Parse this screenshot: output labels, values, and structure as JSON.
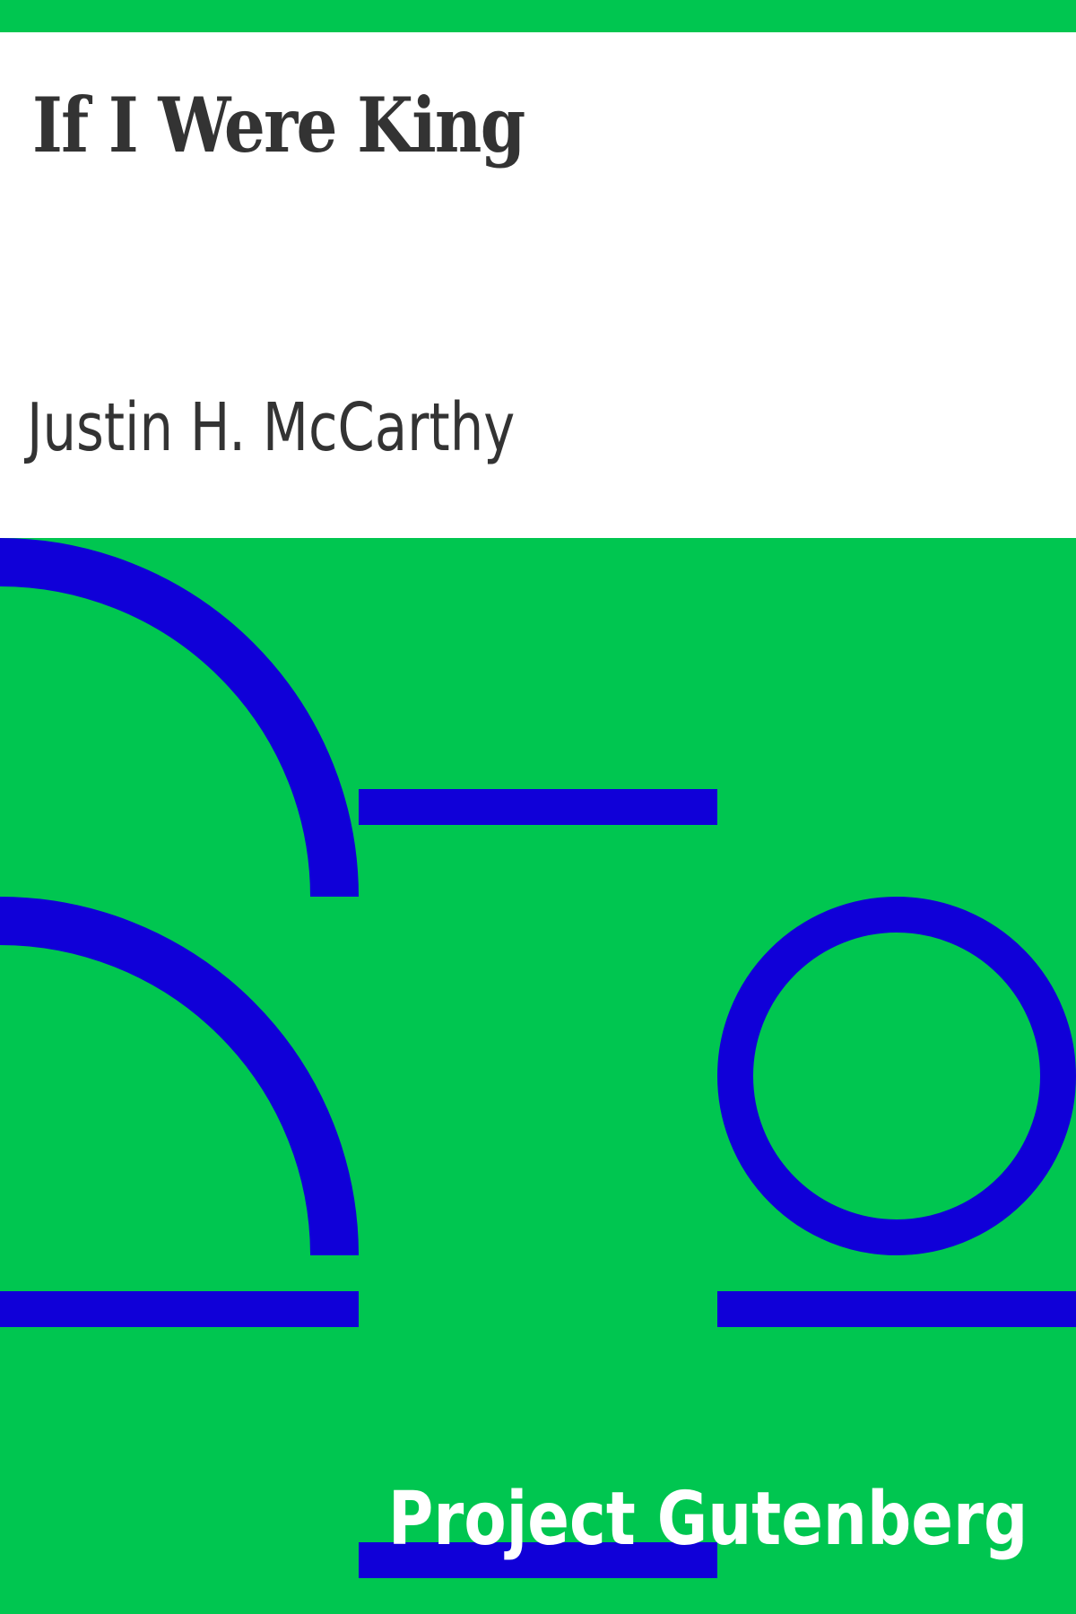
{
  "cover": {
    "title": "If I Were King",
    "author": "Justin H. McCarthy",
    "publisher": "Project Gutenberg"
  },
  "colors": {
    "background": "#00c650",
    "shapes": "#1000d8",
    "text_dark": "#333333",
    "text_light": "#ffffff",
    "title_area": "#ffffff"
  },
  "decorations": [
    "quarter-arc-shape",
    "horizontal-bar-shape",
    "ring-shape"
  ]
}
